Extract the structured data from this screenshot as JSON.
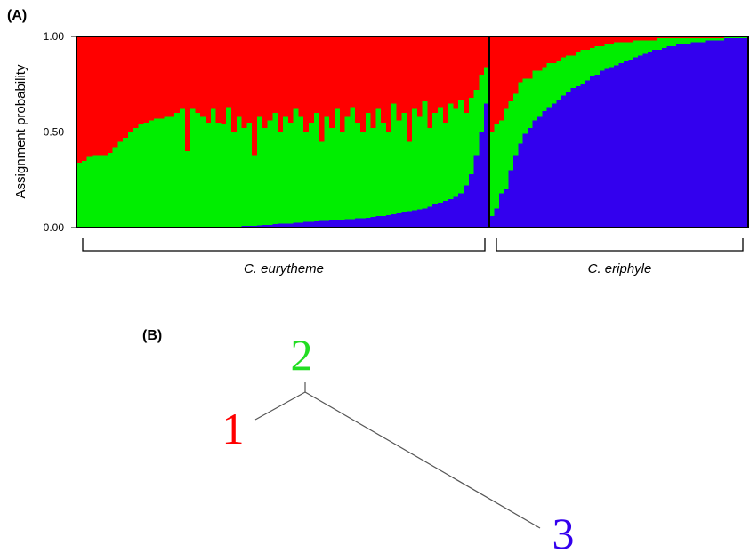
{
  "panels": {
    "a_label": "(A)",
    "b_label": "(B)"
  },
  "chart_data": {
    "type": "bar",
    "stacked": true,
    "ylabel": "Assignment probability",
    "ylim": [
      0,
      1
    ],
    "yticks": [
      "0.00",
      "0.50",
      "1.00"
    ],
    "colors": {
      "cluster1": "#ff0000",
      "cluster2": "#00ee00",
      "cluster3": "#3300ee"
    },
    "groups": [
      {
        "name": "C. eurytheme",
        "blue": [
          0,
          0,
          0,
          0,
          0,
          0,
          0,
          0,
          0,
          0,
          0,
          0,
          0,
          0,
          0,
          0,
          0,
          0,
          0,
          0,
          0,
          0,
          0,
          0,
          0,
          0,
          0,
          0,
          0,
          0,
          0.005,
          0.005,
          0.01,
          0.01,
          0.01,
          0.012,
          0.015,
          0.015,
          0.018,
          0.02,
          0.02,
          0.022,
          0.025,
          0.025,
          0.03,
          0.03,
          0.032,
          0.035,
          0.035,
          0.04,
          0.04,
          0.042,
          0.045,
          0.045,
          0.05,
          0.05,
          0.052,
          0.055,
          0.06,
          0.06,
          0.065,
          0.07,
          0.075,
          0.08,
          0.085,
          0.09,
          0.095,
          0.1,
          0.11,
          0.12,
          0.13,
          0.14,
          0.15,
          0.16,
          0.18,
          0.22,
          0.28,
          0.38,
          0.5,
          0.65
        ],
        "green_top": [
          0.34,
          0.35,
          0.37,
          0.38,
          0.38,
          0.38,
          0.39,
          0.42,
          0.45,
          0.47,
          0.5,
          0.52,
          0.54,
          0.55,
          0.56,
          0.57,
          0.57,
          0.58,
          0.58,
          0.6,
          0.62,
          0.4,
          0.62,
          0.6,
          0.58,
          0.55,
          0.62,
          0.55,
          0.54,
          0.63,
          0.5,
          0.58,
          0.52,
          0.55,
          0.38,
          0.58,
          0.52,
          0.56,
          0.6,
          0.5,
          0.58,
          0.55,
          0.62,
          0.58,
          0.5,
          0.55,
          0.6,
          0.45,
          0.58,
          0.52,
          0.62,
          0.5,
          0.58,
          0.63,
          0.55,
          0.5,
          0.6,
          0.52,
          0.62,
          0.55,
          0.5,
          0.65,
          0.56,
          0.6,
          0.45,
          0.62,
          0.58,
          0.66,
          0.52,
          0.6,
          0.63,
          0.55,
          0.65,
          0.62,
          0.67,
          0.6,
          0.68,
          0.72,
          0.8,
          0.84
        ]
      },
      {
        "name": "C. eriphyle",
        "blue": [
          0.06,
          0.1,
          0.18,
          0.2,
          0.3,
          0.38,
          0.44,
          0.49,
          0.52,
          0.56,
          0.58,
          0.61,
          0.63,
          0.65,
          0.67,
          0.69,
          0.71,
          0.73,
          0.74,
          0.75,
          0.77,
          0.79,
          0.8,
          0.82,
          0.83,
          0.84,
          0.85,
          0.86,
          0.87,
          0.88,
          0.89,
          0.9,
          0.91,
          0.92,
          0.93,
          0.93,
          0.94,
          0.95,
          0.95,
          0.96,
          0.96,
          0.96,
          0.97,
          0.97,
          0.97,
          0.98,
          0.98,
          0.98,
          0.98,
          0.99,
          0.99,
          0.99,
          0.99,
          0.99
        ],
        "green_top": [
          0.5,
          0.54,
          0.56,
          0.62,
          0.66,
          0.7,
          0.76,
          0.78,
          0.78,
          0.82,
          0.82,
          0.84,
          0.86,
          0.86,
          0.87,
          0.89,
          0.9,
          0.9,
          0.92,
          0.93,
          0.93,
          0.94,
          0.95,
          0.95,
          0.96,
          0.96,
          0.97,
          0.97,
          0.97,
          0.97,
          0.98,
          0.98,
          0.98,
          0.98,
          0.98,
          0.99,
          0.99,
          0.99,
          0.99,
          0.99,
          0.99,
          0.99,
          0.99,
          0.99,
          0.99,
          0.99,
          0.99,
          0.99,
          0.99,
          0.995,
          0.995,
          0.995,
          0.995,
          0.995
        ]
      }
    ]
  },
  "tree": {
    "labels": [
      {
        "id": "1",
        "text": "1",
        "color": "#ff0000"
      },
      {
        "id": "2",
        "text": "2",
        "color": "#22dd22"
      },
      {
        "id": "3",
        "text": "3",
        "color": "#3300ee"
      }
    ]
  }
}
